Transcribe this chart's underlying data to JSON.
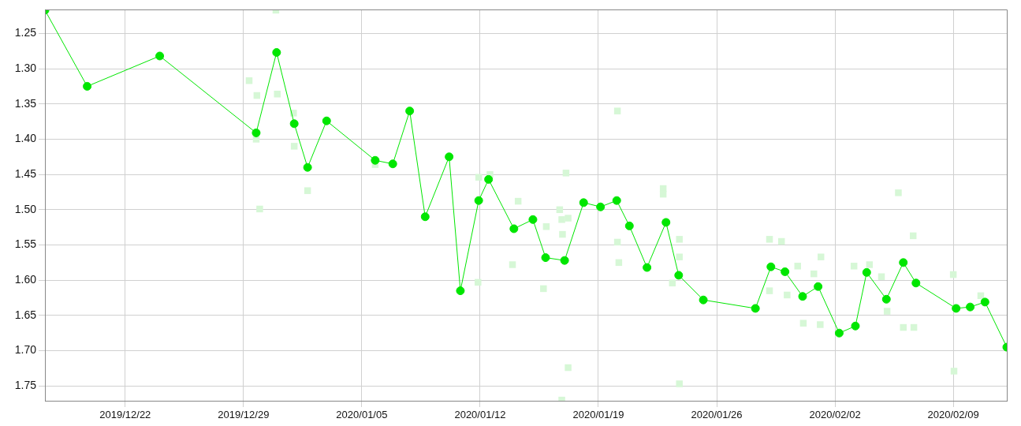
{
  "chart_data": {
    "type": "line",
    "xlim": [
      "2019-12-17T06:00",
      "2020-02-12T04:00"
    ],
    "xticks": [
      {
        "value": "2019-12-22",
        "label": "2019/12/22"
      },
      {
        "value": "2019-12-29",
        "label": "2019/12/29"
      },
      {
        "value": "2020-01-05",
        "label": "2020/01/05"
      },
      {
        "value": "2020-01-12",
        "label": "2020/01/12"
      },
      {
        "value": "2020-01-19",
        "label": "2020/01/19"
      },
      {
        "value": "2020-01-26",
        "label": "2020/01/26"
      },
      {
        "value": "2020-02-02",
        "label": "2020/02/02"
      },
      {
        "value": "2020-02-09",
        "label": "2020/02/09"
      }
    ],
    "ylim": [
      1.771,
      1.216
    ],
    "yticks": [
      {
        "value": 1.25,
        "label": "1.25"
      },
      {
        "value": 1.3,
        "label": "1.30"
      },
      {
        "value": 1.35,
        "label": "1.35"
      },
      {
        "value": 1.4,
        "label": "1.40"
      },
      {
        "value": 1.45,
        "label": "1.45"
      },
      {
        "value": 1.5,
        "label": "1.50"
      },
      {
        "value": 1.55,
        "label": "1.55"
      },
      {
        "value": 1.6,
        "label": "1.60"
      },
      {
        "value": 1.65,
        "label": "1.65"
      },
      {
        "value": 1.7,
        "label": "1.70"
      },
      {
        "value": 1.75,
        "label": "1.75"
      }
    ],
    "grid": true,
    "legend": false,
    "series": [
      {
        "type": "scatter",
        "marker": "square",
        "color": "#d6f7d6",
        "x": [
          "2019-12-30T22:00",
          "2019-12-29T08:00",
          "2019-12-29T19:00",
          "2019-12-31T00:00",
          "2019-12-29T18:00",
          "2019-12-29T23:00",
          "2019-12-31T23:00",
          "2020-01-01T00:00",
          "2020-01-01T19:00",
          "2020-01-05T19:00",
          "2020-01-11T22:00",
          "2020-01-12T14:00",
          "2020-01-11T21:00",
          "2020-01-13T22:00",
          "2020-01-14T06:00",
          "2020-01-15T18:00",
          "2020-01-15T22:00",
          "2020-01-16T17:00",
          "2020-01-16T20:00",
          "2020-01-17T05:00",
          "2020-01-16T21:00",
          "2020-01-17T02:00",
          "2020-01-17T05:00",
          "2020-01-16T20:00",
          "2020-01-20T03:00",
          "2020-01-20T03:00",
          "2020-01-20T05:00",
          "2020-01-22T20:00",
          "2020-01-22T20:00",
          "2020-01-23T19:00",
          "2020-01-23T19:00",
          "2020-01-23T09:00",
          "2020-01-23T19:00",
          "2020-01-29T03:00",
          "2020-01-29T20:00",
          "2020-01-29T03:00",
          "2020-01-30T04:00",
          "2020-01-30T19:00",
          "2020-01-31T03:00",
          "2020-01-31T18:00",
          "2020-02-01T04:00",
          "2020-02-01T03:00",
          "2020-02-03T03:00",
          "2020-02-04T01:00",
          "2020-02-04T18:00",
          "2020-02-05T02:00",
          "2020-02-05T18:00",
          "2020-02-06T01:00",
          "2020-02-06T16:00",
          "2020-02-06T15:00",
          "2020-02-09T00:00",
          "2020-02-09T01:00",
          "2020-02-10T15:00"
        ],
        "values": [
          1.217,
          1.317,
          1.338,
          1.336,
          1.4,
          1.499,
          1.363,
          1.41,
          1.473,
          1.436,
          1.454,
          1.45,
          1.603,
          1.578,
          1.488,
          1.612,
          1.524,
          1.5,
          1.514,
          1.512,
          1.535,
          1.448,
          1.724,
          1.77,
          1.36,
          1.546,
          1.575,
          1.47,
          1.478,
          1.542,
          1.567,
          1.604,
          1.747,
          1.542,
          1.545,
          1.615,
          1.621,
          1.58,
          1.661,
          1.591,
          1.567,
          1.663,
          1.58,
          1.578,
          1.595,
          1.644,
          1.476,
          1.667,
          1.667,
          1.537,
          1.592,
          1.729,
          1.622
        ]
      },
      {
        "marker": "circle",
        "color": "#00e600",
        "x": [
          "2019-12-17T06:00",
          "2019-12-19T18:00",
          "2019-12-24T01:00",
          "2019-12-29T18:00",
          "2019-12-30T23:00",
          "2020-01-01T00:00",
          "2020-01-01T19:00",
          "2020-01-02T22:00",
          "2020-01-05T19:00",
          "2020-01-06T20:00",
          "2020-01-07T20:00",
          "2020-01-08T18:00",
          "2020-01-10T04:00",
          "2020-01-10T20:00",
          "2020-01-11T22:00",
          "2020-01-12T12:00",
          "2020-01-14T00:00",
          "2020-01-15T03:00",
          "2020-01-15T21:00",
          "2020-01-17T00:00",
          "2020-01-18T03:00",
          "2020-01-19T03:00",
          "2020-01-20T02:00",
          "2020-01-20T20:00",
          "2020-01-21T21:00",
          "2020-01-23T00:00",
          "2020-01-23T18:00",
          "2020-01-25T05:00",
          "2020-01-28T07:00",
          "2020-01-29T05:00",
          "2020-01-30T01:00",
          "2020-01-31T02:00",
          "2020-02-01T00:00",
          "2020-02-02T06:00",
          "2020-02-03T05:00",
          "2020-02-03T21:00",
          "2020-02-05T01:00",
          "2020-02-06T01:00",
          "2020-02-06T19:00",
          "2020-02-09T04:00",
          "2020-02-10T00:00",
          "2020-02-10T21:00",
          "2020-02-12T04:00"
        ],
        "values": [
          1.217,
          1.325,
          1.282,
          1.391,
          1.277,
          1.378,
          1.44,
          1.374,
          1.43,
          1.435,
          1.36,
          1.51,
          1.425,
          1.615,
          1.487,
          1.457,
          1.527,
          1.514,
          1.568,
          1.572,
          1.49,
          1.496,
          1.487,
          1.523,
          1.582,
          1.518,
          1.593,
          1.628,
          1.64,
          1.581,
          1.588,
          1.623,
          1.609,
          1.675,
          1.665,
          1.589,
          1.627,
          1.575,
          1.604,
          1.64,
          1.638,
          1.631,
          1.695
        ]
      }
    ]
  }
}
